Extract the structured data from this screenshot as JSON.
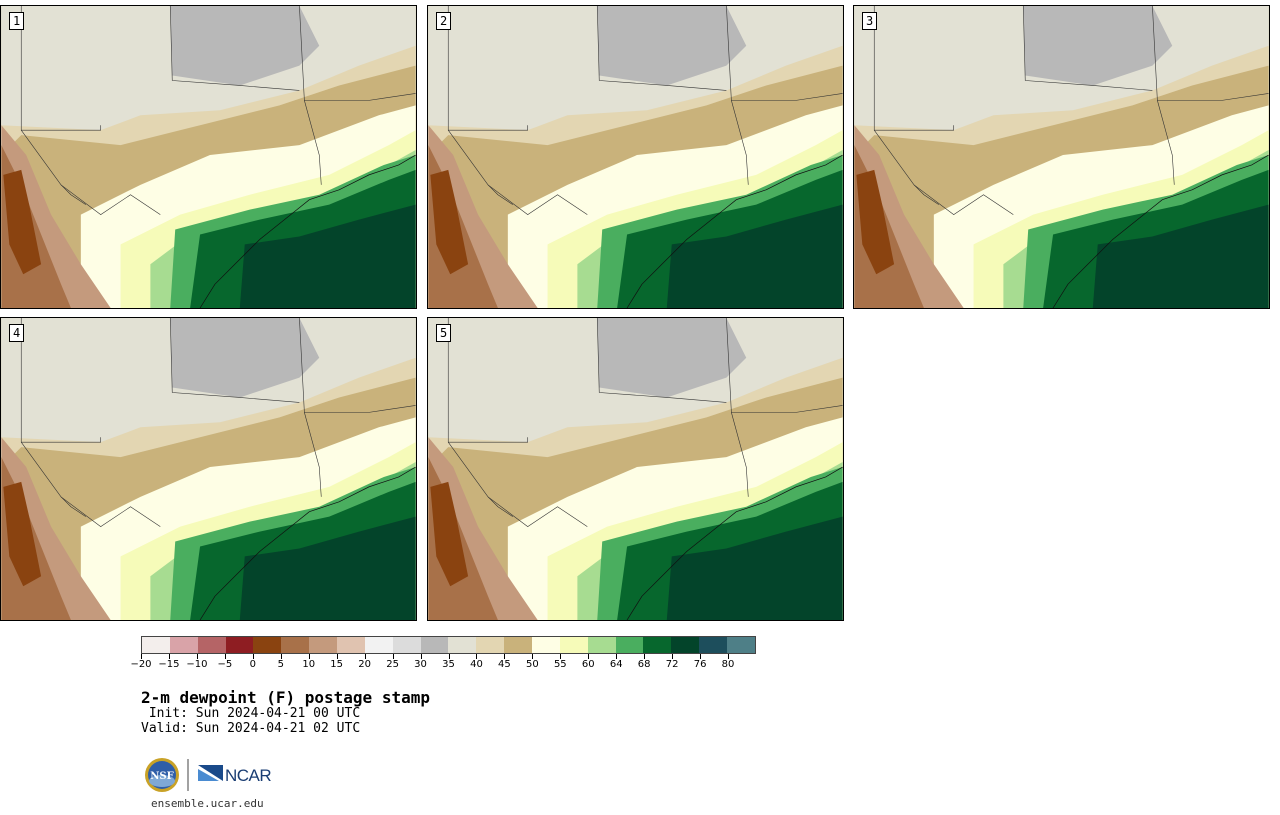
{
  "stamps": [
    {
      "label": "1"
    },
    {
      "label": "2"
    },
    {
      "label": "3"
    },
    {
      "label": "4"
    },
    {
      "label": "5"
    }
  ],
  "colorbar": {
    "colors": [
      "#f3eeec",
      "#d9a3a8",
      "#b56466",
      "#8e1d22",
      "#8a4310",
      "#a87149",
      "#c49a7d",
      "#e0c3b0",
      "#f2f2f2",
      "#dcdcdc",
      "#b8b8b8",
      "#e2e1d4",
      "#e3d6b2",
      "#c9b27b",
      "#fefee5",
      "#f6fbb9",
      "#a7dc91",
      "#4aae5f",
      "#07672d",
      "#03442a",
      "#1d4e5c",
      "#4e7f87"
    ],
    "tick_labels": [
      "−20",
      "−15",
      "−10",
      "−5",
      "0",
      "5",
      "10",
      "15",
      "20",
      "25",
      "30",
      "35",
      "40",
      "45",
      "50",
      "55",
      "60",
      "64",
      "68",
      "72",
      "76",
      "80"
    ]
  },
  "title": "2-m dewpoint (F) postage stamp",
  "init_text": " Init: Sun 2024-04-21 00 UTC",
  "valid_text": "Valid: Sun 2024-04-21 02 UTC",
  "logos": {
    "nsf": "NSF",
    "ncar": "NCAR"
  },
  "website": "ensemble.ucar.edu"
}
